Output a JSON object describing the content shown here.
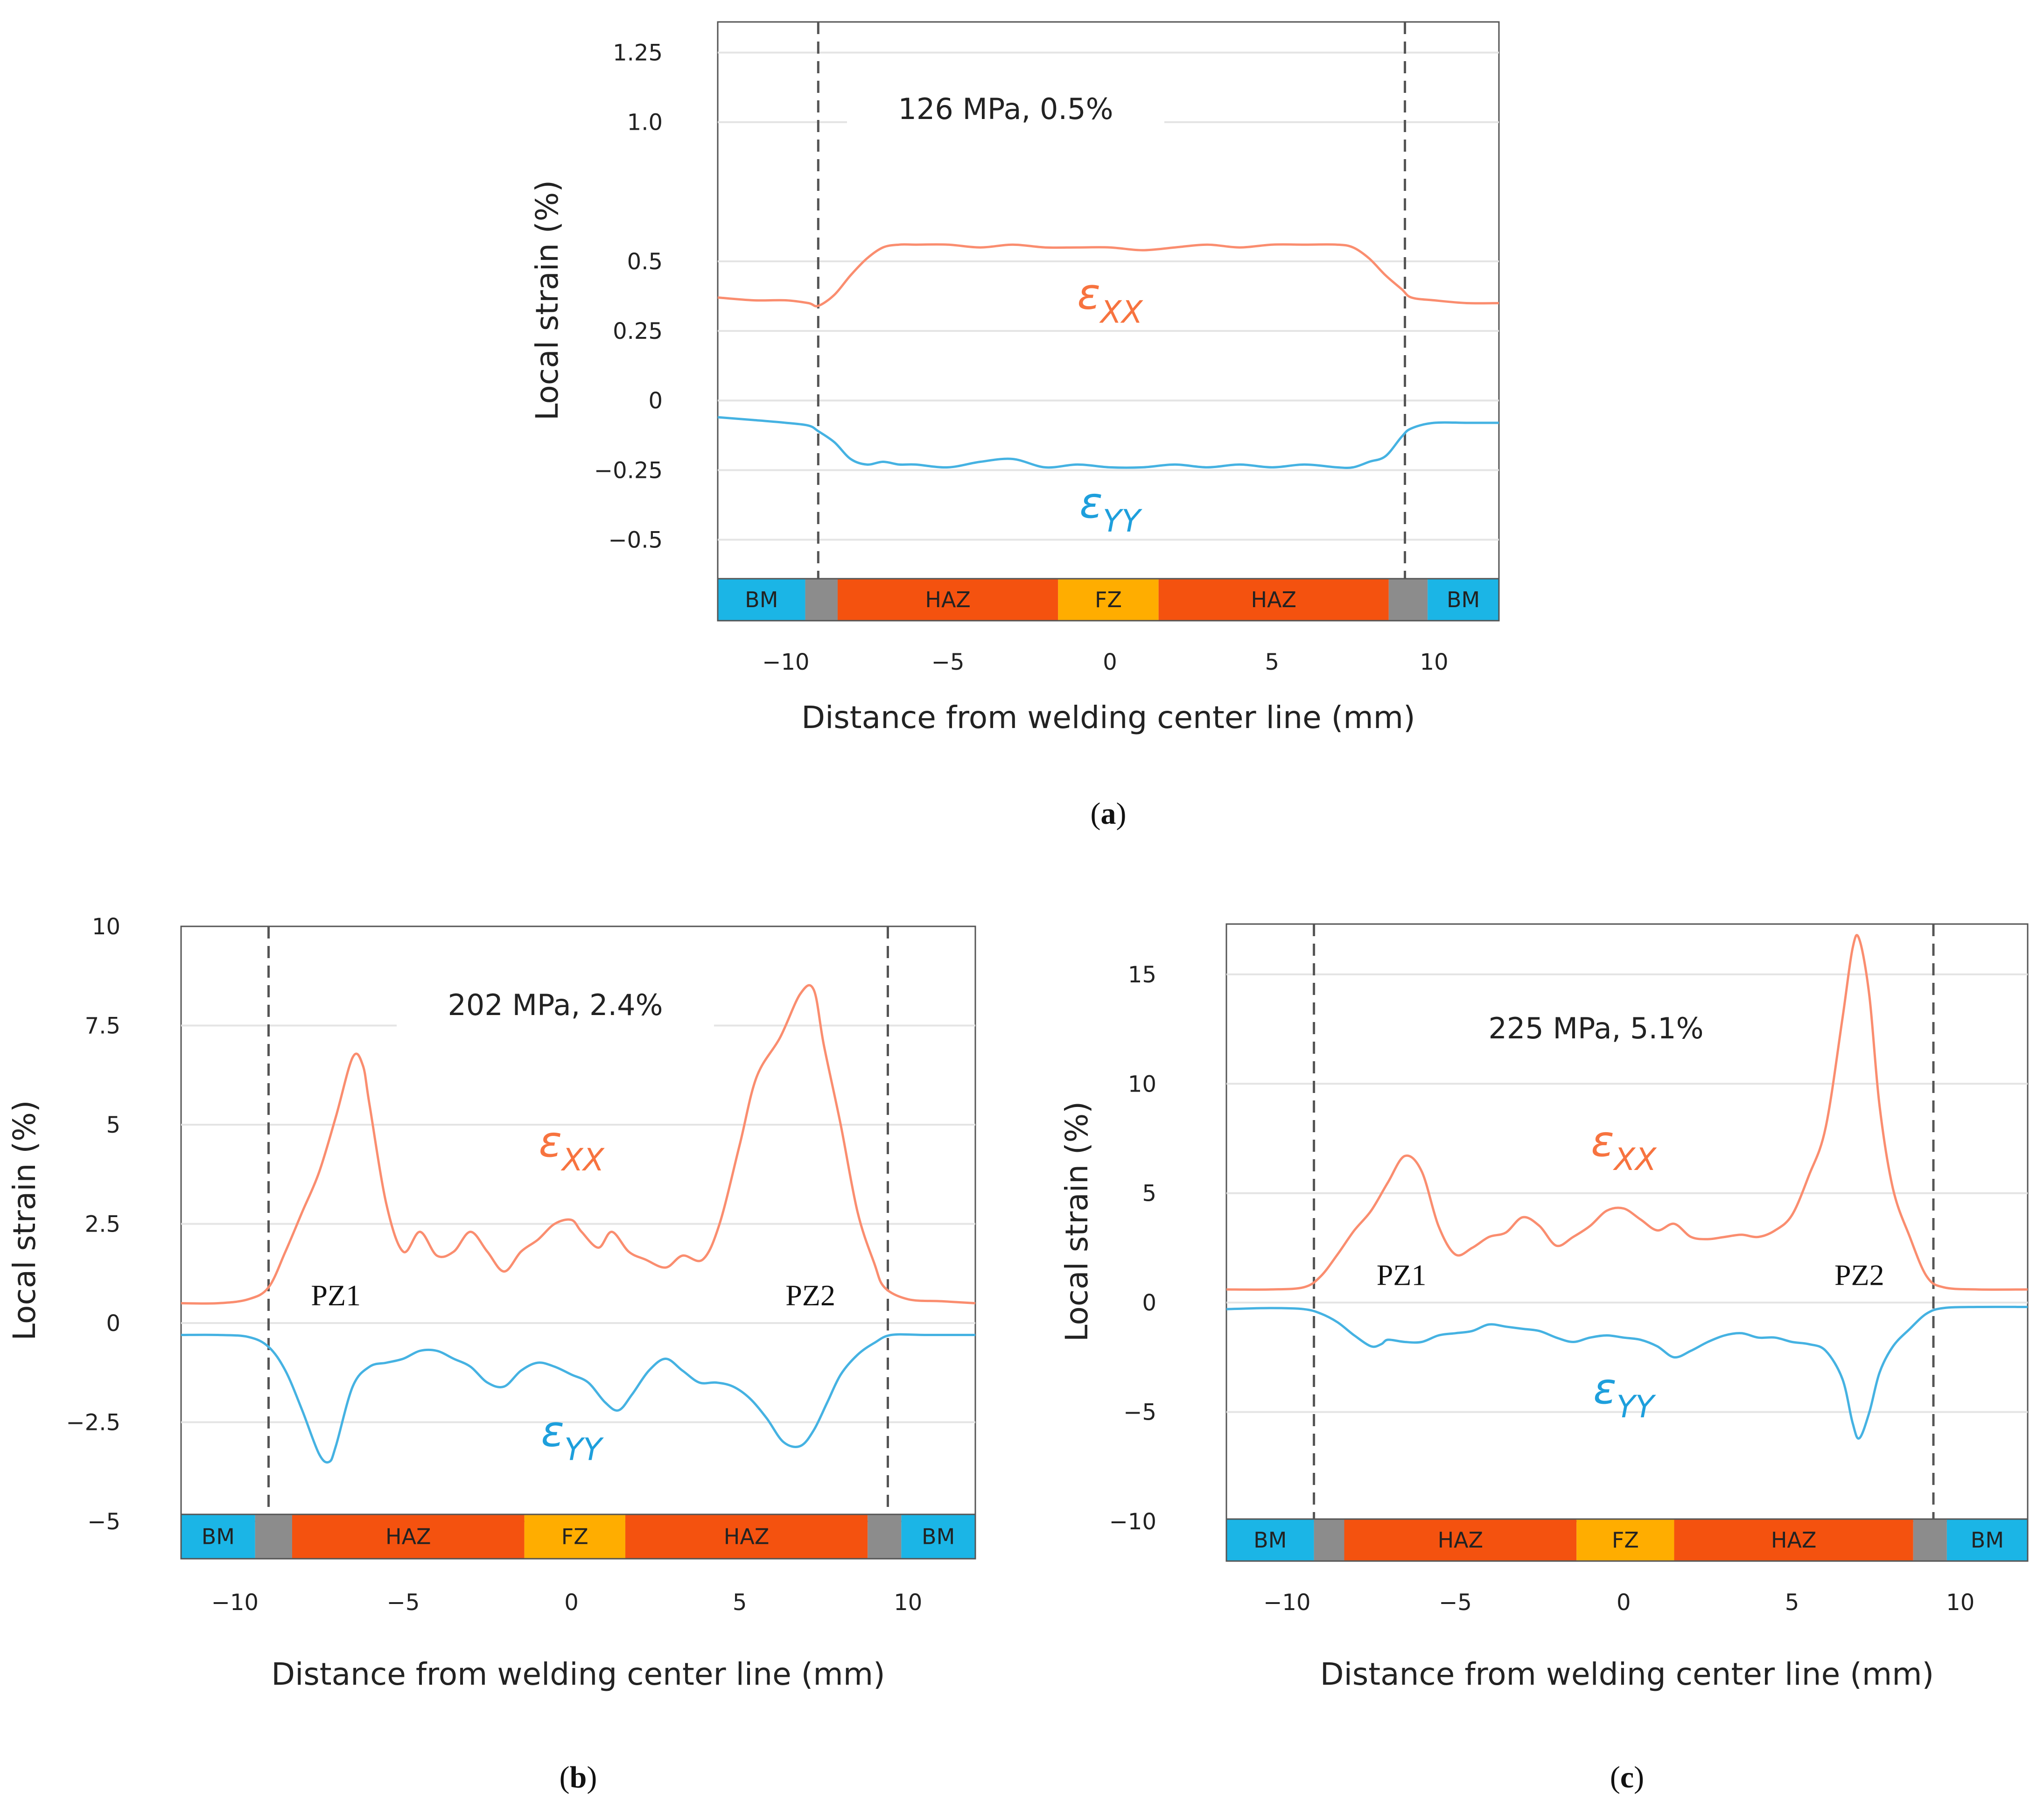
{
  "chart_data": [
    {
      "type": "line",
      "id": "a",
      "subfigure_label": "a",
      "annotation": "126 MPa, 0.5%",
      "xlabel": "Distance from welding center line (mm)",
      "ylabel": "Local strain (%)",
      "xlim": [
        -12.1,
        12.0
      ],
      "ylim": [
        -0.64,
        1.36
      ],
      "xticks": [
        -10,
        -5,
        0,
        5,
        10
      ],
      "xtick_labels": [
        "−10",
        "−5",
        "0",
        "5",
        "10"
      ],
      "yticks": [
        1.25,
        1.0,
        0.5,
        0.25,
        0,
        -0.25,
        -0.5
      ],
      "ytick_labels": [
        "1.25",
        "1.0",
        "0.5",
        "0.25",
        "0",
        "−0.25",
        "−0.5"
      ],
      "grid_y": [
        1.25,
        1.0,
        0.5,
        0.25,
        0,
        -0.25,
        -0.5
      ],
      "boundary_lines": [
        -9.0,
        9.1
      ],
      "zones": [
        {
          "label": "BM",
          "from": -12.1,
          "to": -9.4,
          "color": "#1bb5e6"
        },
        {
          "label": "",
          "from": -9.4,
          "to": -8.4,
          "color": "#8c8c8c"
        },
        {
          "label": "HAZ",
          "from": -8.4,
          "to": -1.6,
          "color": "#f4520f"
        },
        {
          "label": "FZ",
          "from": -1.6,
          "to": 1.5,
          "color": "#ffad00"
        },
        {
          "label": "HAZ",
          "from": 1.5,
          "to": 8.6,
          "color": "#f4520f"
        },
        {
          "label": "",
          "from": 8.6,
          "to": 9.8,
          "color": "#8c8c8c"
        },
        {
          "label": "BM",
          "from": 9.8,
          "to": 12.0,
          "color": "#1bb5e6"
        }
      ],
      "series": [
        {
          "name": "εXX",
          "symbol": "ε",
          "subscript": "XX",
          "color": "#fa8d6f",
          "label_color": "#f7733f",
          "label_at": [
            0,
            0.33
          ],
          "x": [
            -12.1,
            -11,
            -10,
            -9.3,
            -9.0,
            -8.5,
            -8.0,
            -7.5,
            -7.0,
            -6.5,
            -6,
            -5,
            -4,
            -3,
            -2,
            -1,
            0,
            1,
            2,
            3,
            4,
            5,
            6,
            7,
            7.5,
            8.0,
            8.5,
            9.0,
            9.3,
            10,
            11,
            12.0
          ],
          "y": [
            0.37,
            0.36,
            0.36,
            0.35,
            0.34,
            0.38,
            0.45,
            0.51,
            0.55,
            0.56,
            0.56,
            0.56,
            0.55,
            0.56,
            0.55,
            0.55,
            0.55,
            0.54,
            0.55,
            0.56,
            0.55,
            0.56,
            0.56,
            0.56,
            0.55,
            0.51,
            0.45,
            0.4,
            0.37,
            0.36,
            0.35,
            0.35
          ]
        },
        {
          "name": "εYY",
          "symbol": "ε",
          "subscript": "YY",
          "color": "#45b2e2",
          "label_color": "#1e9fdc",
          "label_at": [
            0,
            -0.42
          ],
          "x": [
            -12.1,
            -11,
            -10,
            -9.3,
            -9.0,
            -8.5,
            -8.0,
            -7.5,
            -7.0,
            -6.5,
            -6,
            -5,
            -4,
            -3,
            -2,
            -1,
            0,
            1,
            2,
            3,
            4,
            5,
            6,
            7,
            7.5,
            8.0,
            8.5,
            9.0,
            9.3,
            10,
            11,
            12.0
          ],
          "y": [
            -0.06,
            -0.07,
            -0.08,
            -0.09,
            -0.11,
            -0.15,
            -0.21,
            -0.23,
            -0.22,
            -0.23,
            -0.23,
            -0.24,
            -0.22,
            -0.21,
            -0.24,
            -0.23,
            -0.24,
            -0.24,
            -0.23,
            -0.24,
            -0.23,
            -0.24,
            -0.23,
            -0.24,
            -0.24,
            -0.22,
            -0.2,
            -0.13,
            -0.1,
            -0.08,
            -0.08,
            -0.08
          ]
        }
      ]
    },
    {
      "type": "line",
      "id": "b",
      "subfigure_label": "b",
      "annotation": "202 MPa, 2.4%",
      "xlabel": "Distance from welding center line (mm)",
      "ylabel": "Local strain (%)",
      "xlim": [
        -11.6,
        12.0
      ],
      "ylim": [
        -5.0,
        10.0
      ],
      "xticks": [
        -10,
        -5,
        0,
        5,
        10
      ],
      "xtick_labels": [
        "−10",
        "−5",
        "0",
        "5",
        "10"
      ],
      "yticks": [
        10,
        7.5,
        5,
        2.5,
        0,
        -2.5,
        -5
      ],
      "ytick_labels": [
        "10",
        "7.5",
        "5",
        "2.5",
        "0",
        "−2.5",
        "−5"
      ],
      "grid_y": [
        7.5,
        5,
        2.5,
        0,
        -2.5
      ],
      "boundary_lines": [
        -9.0,
        9.4
      ],
      "pz_labels": [
        {
          "text": "PZ1",
          "at": [
            -7.0,
            0.45
          ]
        },
        {
          "text": "PZ2",
          "at": [
            7.1,
            0.45
          ]
        }
      ],
      "zones": [
        {
          "label": "BM",
          "from": -11.6,
          "to": -9.4,
          "color": "#1bb5e6"
        },
        {
          "label": "",
          "from": -9.4,
          "to": -8.3,
          "color": "#8c8c8c"
        },
        {
          "label": "HAZ",
          "from": -8.3,
          "to": -1.4,
          "color": "#f4520f"
        },
        {
          "label": "FZ",
          "from": -1.4,
          "to": 1.6,
          "color": "#ffad00"
        },
        {
          "label": "HAZ",
          "from": 1.6,
          "to": 8.8,
          "color": "#f4520f"
        },
        {
          "label": "",
          "from": 8.8,
          "to": 9.8,
          "color": "#8c8c8c"
        },
        {
          "label": "BM",
          "from": 9.8,
          "to": 12.0,
          "color": "#1bb5e6"
        }
      ],
      "series": [
        {
          "name": "εXX",
          "symbol": "ε",
          "subscript": "XX",
          "color": "#fa8d6f",
          "label_color": "#f7733f",
          "label_at": [
            0,
            4.2
          ],
          "x": [
            -11.6,
            -10.5,
            -9.6,
            -9.0,
            -8.5,
            -8.0,
            -7.5,
            -7.0,
            -6.5,
            -6.2,
            -6.0,
            -5.5,
            -5.0,
            -4.5,
            -4.0,
            -3.5,
            -3.0,
            -2.5,
            -2.0,
            -1.5,
            -1.0,
            -0.5,
            0.0,
            0.3,
            0.8,
            1.2,
            1.7,
            2.2,
            2.8,
            3.3,
            3.9,
            4.4,
            5.0,
            5.5,
            6.2,
            6.8,
            7.2,
            7.5,
            8.0,
            8.5,
            9.0,
            9.3,
            10.0,
            11.0,
            12.0
          ],
          "y": [
            0.5,
            0.5,
            0.6,
            0.9,
            1.8,
            2.8,
            3.8,
            5.2,
            6.7,
            6.5,
            5.5,
            3.0,
            1.8,
            2.3,
            1.7,
            1.8,
            2.3,
            1.8,
            1.3,
            1.8,
            2.1,
            2.5,
            2.6,
            2.3,
            1.9,
            2.3,
            1.8,
            1.6,
            1.4,
            1.7,
            1.6,
            2.5,
            4.5,
            6.2,
            7.2,
            8.3,
            8.4,
            7.0,
            5.0,
            2.8,
            1.5,
            0.9,
            0.6,
            0.55,
            0.5
          ]
        },
        {
          "name": "εYY",
          "symbol": "ε",
          "subscript": "YY",
          "color": "#45b2e2",
          "label_color": "#1e9fdc",
          "label_at": [
            0,
            -3.1
          ],
          "x": [
            -11.6,
            -10.5,
            -9.6,
            -9.0,
            -8.5,
            -8.0,
            -7.5,
            -7.2,
            -7.0,
            -6.5,
            -6.0,
            -5.5,
            -5.0,
            -4.5,
            -4.0,
            -3.5,
            -3.0,
            -2.5,
            -2.0,
            -1.5,
            -1.0,
            -0.5,
            0.0,
            0.5,
            1.0,
            1.4,
            1.8,
            2.3,
            2.8,
            3.3,
            3.8,
            4.3,
            4.8,
            5.3,
            5.8,
            6.3,
            6.8,
            7.2,
            7.6,
            8.0,
            8.5,
            9.0,
            9.5,
            10.5,
            12.0
          ],
          "y": [
            -0.3,
            -0.3,
            -0.35,
            -0.6,
            -1.2,
            -2.2,
            -3.3,
            -3.5,
            -3.1,
            -1.6,
            -1.1,
            -1.0,
            -0.9,
            -0.7,
            -0.7,
            -0.9,
            -1.1,
            -1.5,
            -1.6,
            -1.2,
            -1.0,
            -1.1,
            -1.3,
            -1.5,
            -2.0,
            -2.2,
            -1.8,
            -1.2,
            -0.9,
            -1.2,
            -1.5,
            -1.5,
            -1.6,
            -1.9,
            -2.4,
            -3.0,
            -3.1,
            -2.7,
            -2.0,
            -1.3,
            -0.8,
            -0.5,
            -0.3,
            -0.3,
            -0.3
          ]
        }
      ]
    },
    {
      "type": "line",
      "id": "c",
      "subfigure_label": "c",
      "annotation": "225 MPa, 5.1%",
      "xlabel": "Distance from welding center line (mm)",
      "ylabel": "Local strain (%)",
      "xlim": [
        -11.8,
        12.0
      ],
      "ylim": [
        -10.0,
        17.3
      ],
      "xticks": [
        -10,
        -5,
        0,
        5,
        10
      ],
      "xtick_labels": [
        "−10",
        "−5",
        "0",
        "5",
        "10"
      ],
      "yticks": [
        15,
        10,
        5,
        0,
        -5,
        -10
      ],
      "ytick_labels": [
        "15",
        "10",
        "5",
        "0",
        "−5",
        "−10"
      ],
      "grid_y": [
        15,
        10,
        5,
        0,
        -5
      ],
      "boundary_lines": [
        -9.2,
        9.2
      ],
      "pz_labels": [
        {
          "text": "PZ1",
          "at": [
            -6.6,
            0.8
          ]
        },
        {
          "text": "PZ2",
          "at": [
            7.0,
            0.8
          ]
        }
      ],
      "zones": [
        {
          "label": "BM",
          "from": -11.8,
          "to": -9.2,
          "color": "#1bb5e6"
        },
        {
          "label": "",
          "from": -9.2,
          "to": -8.3,
          "color": "#8c8c8c"
        },
        {
          "label": "HAZ",
          "from": -8.3,
          "to": -1.4,
          "color": "#f4520f"
        },
        {
          "label": "FZ",
          "from": -1.4,
          "to": 1.5,
          "color": "#ffad00"
        },
        {
          "label": "HAZ",
          "from": 1.5,
          "to": 8.6,
          "color": "#f4520f"
        },
        {
          "label": "",
          "from": 8.6,
          "to": 9.6,
          "color": "#8c8c8c"
        },
        {
          "label": "BM",
          "from": 9.6,
          "to": 12.0,
          "color": "#1bb5e6"
        }
      ],
      "series": [
        {
          "name": "εXX",
          "symbol": "ε",
          "subscript": "XX",
          "color": "#fa8d6f",
          "label_color": "#f7733f",
          "label_at": [
            0,
            6.7
          ],
          "x": [
            -11.8,
            -10.5,
            -9.5,
            -9.0,
            -8.5,
            -8.0,
            -7.5,
            -7.0,
            -6.5,
            -6.0,
            -5.5,
            -5.0,
            -4.5,
            -4.0,
            -3.5,
            -3.0,
            -2.5,
            -2.0,
            -1.5,
            -1.0,
            -0.5,
            0.0,
            0.5,
            1.0,
            1.5,
            2.0,
            2.5,
            3.0,
            3.5,
            4.0,
            4.5,
            5.0,
            5.5,
            6.0,
            6.5,
            6.8,
            7.0,
            7.3,
            7.6,
            8.0,
            8.5,
            9.0,
            9.5,
            10.5,
            12.0
          ],
          "y": [
            0.6,
            0.6,
            0.7,
            1.2,
            2.2,
            3.3,
            4.2,
            5.5,
            6.7,
            6.0,
            3.5,
            2.2,
            2.5,
            3.0,
            3.2,
            3.9,
            3.5,
            2.6,
            3.0,
            3.5,
            4.2,
            4.3,
            3.8,
            3.3,
            3.6,
            3.0,
            2.9,
            3.0,
            3.1,
            3.0,
            3.3,
            4.0,
            5.8,
            8.0,
            13.0,
            16.2,
            16.6,
            14.0,
            9.0,
            5.2,
            3.0,
            1.2,
            0.7,
            0.6,
            0.6
          ]
        },
        {
          "name": "εYY",
          "symbol": "ε",
          "subscript": "YY",
          "color": "#45b2e2",
          "label_color": "#1e9fdc",
          "label_at": [
            0,
            -4.6
          ],
          "x": [
            -11.8,
            -10.5,
            -9.5,
            -9.0,
            -8.5,
            -8.0,
            -7.5,
            -7.2,
            -7.0,
            -6.5,
            -6.0,
            -5.5,
            -5.0,
            -4.5,
            -4.0,
            -3.5,
            -3.0,
            -2.5,
            -2.0,
            -1.5,
            -1.0,
            -0.5,
            0.0,
            0.5,
            1.0,
            1.5,
            2.0,
            2.5,
            3.0,
            3.5,
            4.0,
            4.5,
            5.0,
            5.5,
            6.0,
            6.5,
            6.8,
            7.0,
            7.3,
            7.6,
            8.0,
            8.5,
            9.0,
            9.5,
            10.5,
            12.0
          ],
          "y": [
            -0.3,
            -0.25,
            -0.3,
            -0.5,
            -0.9,
            -1.5,
            -2.0,
            -1.9,
            -1.7,
            -1.8,
            -1.8,
            -1.5,
            -1.4,
            -1.3,
            -1.0,
            -1.1,
            -1.2,
            -1.3,
            -1.6,
            -1.8,
            -1.6,
            -1.5,
            -1.6,
            -1.7,
            -2.0,
            -2.5,
            -2.2,
            -1.8,
            -1.5,
            -1.4,
            -1.6,
            -1.6,
            -1.8,
            -1.9,
            -2.2,
            -3.5,
            -5.5,
            -6.2,
            -5.0,
            -3.2,
            -2.0,
            -1.2,
            -0.5,
            -0.25,
            -0.2,
            -0.2
          ]
        }
      ]
    }
  ]
}
